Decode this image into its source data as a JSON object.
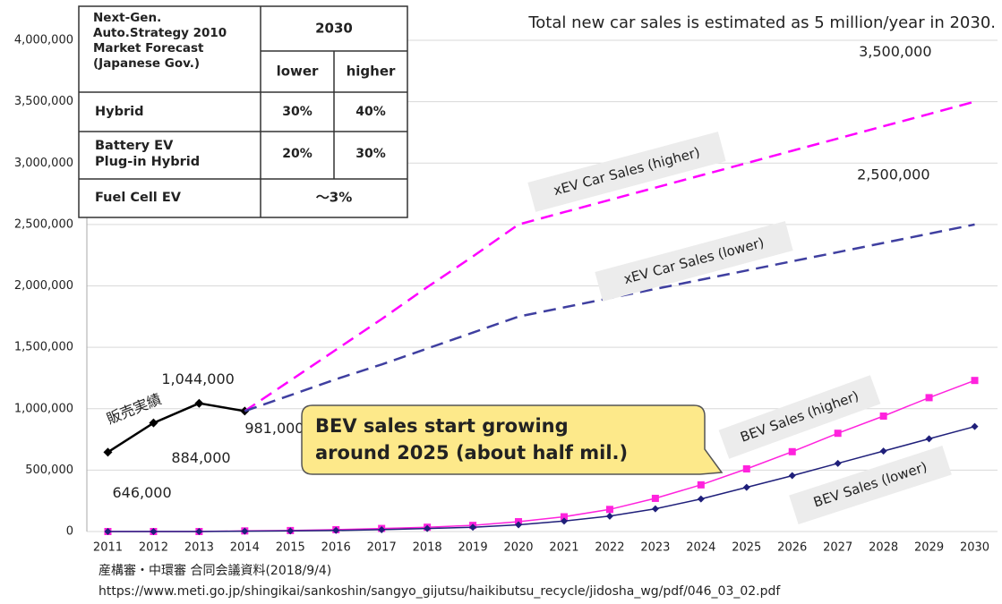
{
  "chart_data": {
    "type": "line",
    "title": "Total new car sales is estimated as 5 million/year in 2030.",
    "categories": [
      "2011",
      "2012",
      "2013",
      "2014",
      "2015",
      "2016",
      "2017",
      "2018",
      "2019",
      "2020",
      "2021",
      "2022",
      "2023",
      "2024",
      "2025",
      "2026",
      "2027",
      "2028",
      "2029",
      "2030"
    ],
    "ylim": [
      0,
      4000000
    ],
    "yticks": [
      0,
      {
        "value": 500000,
        "label": "500,000"
      },
      {
        "value": 1000000,
        "label": "1,000,000"
      },
      {
        "value": 1500000,
        "label": "1,500,000"
      },
      {
        "value": 2000000,
        "label": "2,000,000"
      },
      {
        "value": 2500000,
        "label": "2,500,000"
      },
      {
        "value": 3000000,
        "label": "3,000,000"
      },
      {
        "value": 3500000,
        "label": "3,500,000"
      },
      {
        "value": 4000000,
        "label": "4,000,000"
      }
    ],
    "grid": true,
    "series": [
      {
        "name": "販売実績",
        "color": "#000000",
        "dash": false,
        "marker": "diamond",
        "values": [
          646000,
          884000,
          1044000,
          981000,
          null,
          null,
          null,
          null,
          null,
          null,
          null,
          null,
          null,
          null,
          null,
          null,
          null,
          null,
          null,
          null
        ],
        "value_labels": [
          "646,000",
          "884,000",
          "1,044,000",
          "981,000",
          null,
          null,
          null,
          null,
          null,
          null,
          null,
          null,
          null,
          null,
          null,
          null,
          null,
          null,
          null,
          null
        ]
      },
      {
        "name": "xEV Car Sales (higher)",
        "color": "#ff00ff",
        "dash": true,
        "marker": "none",
        "values": [
          null,
          null,
          null,
          981000,
          1230000,
          1480000,
          1730000,
          1990000,
          2240000,
          2500000,
          2600000,
          2700000,
          2800000,
          2900000,
          3000000,
          3100000,
          3200000,
          3300000,
          3400000,
          3500000
        ],
        "value_labels": [
          null,
          null,
          null,
          null,
          null,
          null,
          null,
          null,
          null,
          null,
          null,
          null,
          null,
          null,
          null,
          null,
          null,
          null,
          null,
          "3,500,000"
        ]
      },
      {
        "name": "xEV Car Sales (lower)",
        "color": "#3f3fa0",
        "dash": true,
        "marker": "none",
        "values": [
          null,
          null,
          null,
          981000,
          1110000,
          1240000,
          1360000,
          1490000,
          1620000,
          1750000,
          1825000,
          1900000,
          1975000,
          2050000,
          2125000,
          2200000,
          2275000,
          2350000,
          2425000,
          2500000
        ],
        "value_labels": [
          null,
          null,
          null,
          null,
          null,
          null,
          null,
          null,
          null,
          null,
          null,
          null,
          null,
          null,
          null,
          null,
          null,
          null,
          null,
          "2,500,000"
        ]
      },
      {
        "name": "BEV Sales (higher)",
        "color": "#ff22dd",
        "dash": false,
        "marker": "square",
        "values": [
          0,
          0,
          0,
          5000,
          8000,
          15000,
          25000,
          35000,
          50000,
          80000,
          120000,
          180000,
          270000,
          380000,
          510000,
          650000,
          800000,
          940000,
          1090000,
          1230000
        ]
      },
      {
        "name": "BEV Sales (lower)",
        "color": "#1f1f7a",
        "dash": false,
        "marker": "diamond",
        "values": [
          0,
          0,
          0,
          3000,
          5000,
          9000,
          15000,
          25000,
          35000,
          55000,
          85000,
          125000,
          185000,
          265000,
          360000,
          455000,
          555000,
          655000,
          755000,
          855000
        ]
      }
    ],
    "annotation": [
      "BEV sales start growing",
      "around 2025 (about half mil.)"
    ]
  },
  "forecast_table": {
    "header": [
      "Next-Gen.",
      "Auto.Strategy 2010",
      "Market  Forecast",
      "(Japanese Gov.)"
    ],
    "year": "2030",
    "columns": [
      "lower",
      "higher"
    ],
    "rows": [
      {
        "label": [
          "Hybrid"
        ],
        "values": [
          "30%",
          "40%"
        ]
      },
      {
        "label": [
          "Battery EV",
          "Plug-in Hybrid"
        ],
        "values": [
          "20%",
          "30%"
        ]
      },
      {
        "label": [
          "Fuel Cell EV"
        ],
        "values": [
          "～3%"
        ]
      }
    ]
  },
  "source": [
    "産構審・中環審 合同会議資料(2018/9/4)",
    "https://www.meti.go.jp/shingikai/sankoshin/sangyo_gijutsu/haikibutsu_recycle/jidosha_wg/pdf/046_03_02.pdf"
  ]
}
